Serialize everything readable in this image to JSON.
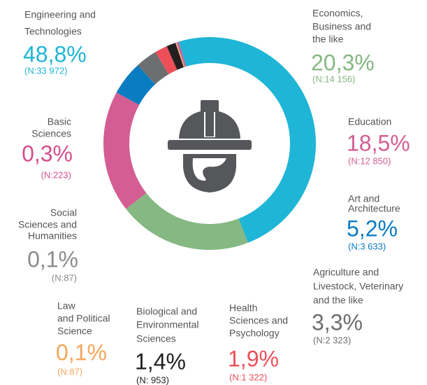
{
  "chart_data": {
    "type": "donut",
    "categories": [
      [
        "Engineering and",
        "Technologies"
      ],
      [
        "Economics,",
        "Business and",
        "the like"
      ],
      [
        "Education"
      ],
      [
        "Art and",
        "Architecture"
      ],
      [
        "Agriculture and",
        "Livestock, Veterinary",
        "and the like"
      ],
      [
        "Health",
        "Sciences and",
        "Psychology"
      ],
      [
        "Biological and",
        "Environmental",
        "Sciences"
      ],
      [
        "Law",
        "and Political",
        "Science"
      ],
      [
        "Social",
        "Sciences and",
        "Humanities"
      ],
      [
        "Basic",
        "Sciences"
      ]
    ],
    "values": [
      48.8,
      20.3,
      18.5,
      5.2,
      3.3,
      1.9,
      1.4,
      0.1,
      0.1,
      0.3
    ],
    "value_labels": [
      "48,8%",
      "20,3%",
      "18,5%",
      "5,2%",
      "3,3%",
      "1,9%",
      "1,4%",
      "0,1%",
      "0,1%",
      "0,3%"
    ],
    "count_labels": [
      "(N:33 972)",
      "(N:14 156)",
      "(N:12 850)",
      "(N:3 633)",
      "(N:2 323)",
      "(N:1 322)",
      "(N: 953)",
      "(N:87)",
      "(N:87)",
      "(N:223)"
    ],
    "colors": [
      "#1fb5d6",
      "#85b882",
      "#d45d93",
      "#0a7cc1",
      "#6d6e70",
      "#ec4f58",
      "#231f20",
      "#f6a55b",
      "#c8b89a",
      "#d45d93"
    ],
    "label_colors": [
      "#1fb5d6",
      "#85b882",
      "#d45d93",
      "#0a7cc1",
      "#6d6e70",
      "#ec4f58",
      "#231f20",
      "#f6a55b",
      "#8a8c8e",
      "#d4508c"
    ]
  }
}
